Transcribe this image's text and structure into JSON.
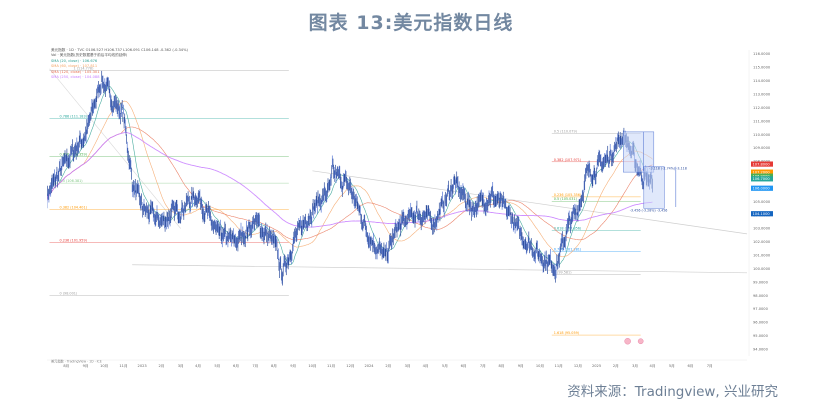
{
  "title": "图表 13:美元指数日线",
  "source": "资料来源：Tradingview, 兴业研究",
  "chart_data": {
    "type": "line",
    "title": "图表 13:美元指数日线",
    "series": [
      {
        "x": [
          "2022-07-01",
          "2022-08-01",
          "2022-09-01",
          "2022-09-27",
          "2022-10-15",
          "2022-11-01",
          "2022-11-15",
          "2022-12-01",
          "2023-01-01",
          "2023-02-01",
          "2023-03-01",
          "2023-04-01",
          "2023-05-01",
          "2023-06-01",
          "2023-07-01",
          "2023-07-14",
          "2023-08-01",
          "2023-09-01",
          "2023-10-01",
          "2023-10-03",
          "2023-11-01",
          "2023-12-01",
          "2023-12-27",
          "2024-01-15",
          "2024-02-15",
          "2024-03-15",
          "2024-04-16",
          "2024-05-15",
          "2024-06-15",
          "2024-07-15",
          "2024-08-01",
          "2024-09-01",
          "2024-09-27",
          "2024-10-15",
          "2024-11-01",
          "2024-11-15",
          "2024-12-15",
          "2025-01-13",
          "2025-02-01",
          "2025-02-15",
          "2025-03-01"
        ],
        "values": [
          105.5,
          108.0,
          110.0,
          114.1,
          112.5,
          111.5,
          106.5,
          104.5,
          103.5,
          104.5,
          105.5,
          102.5,
          102.0,
          103.5,
          102.0,
          99.6,
          102.0,
          104.5,
          106.0,
          107.2,
          106.0,
          102.5,
          100.8,
          103.0,
          104.2,
          103.5,
          106.4,
          104.5,
          105.5,
          104.0,
          102.5,
          101.0,
          100.2,
          103.0,
          104.5,
          107.0,
          108.0,
          110.0,
          108.0,
          106.8,
          106.5
        ]
      }
    ],
    "yaxis_ticks": [
      "116.0000",
      "115.0000",
      "114.0000",
      "113.0000",
      "112.0000",
      "111.0000",
      "110.0000",
      "109.0000",
      "108.0000",
      "107.0000",
      "106.0000",
      "105.0000",
      "104.0000",
      "103.0000",
      "102.0000",
      "101.0000",
      "100.0000",
      "99.0000",
      "98.0000",
      "97.0000",
      "96.0000",
      "95.0000",
      "94.0000"
    ],
    "xaxis_ticks": [
      "8月",
      "9月",
      "10月",
      "11月",
      "2023",
      "2月",
      "3月",
      "4月",
      "5月",
      "6月",
      "7月",
      "8月",
      "9月",
      "10月",
      "11月",
      "12月",
      "2024",
      "2月",
      "3月",
      "4月",
      "5月",
      "6月",
      "7月",
      "8月",
      "9月",
      "10月",
      "11月",
      "12月",
      "2025",
      "2月",
      "3月",
      "4月",
      "5月",
      "6月",
      "7月"
    ],
    "x_range": [
      "2022-07-01",
      "2025-07-31"
    ],
    "ylim": [
      93.5,
      116.3
    ],
    "grid": false,
    "moving_averages": [
      {
        "name": "SMA (20, close)",
        "color": "#2a9d8f"
      },
      {
        "name": "SMA (60, close)",
        "color": "#f4a261"
      },
      {
        "name": "SMA (120, close)",
        "color": "#e76f51"
      },
      {
        "name": "SMA (250, close)",
        "color": "#c77dff"
      }
    ],
    "fib_levels": [
      {
        "label": "1 (114.778)",
        "value": 114.778,
        "color": "#9e9e9e"
      },
      {
        "label": "0.786 (111.183)",
        "value": 111.183,
        "color": "#26a69a"
      },
      {
        "label": "0.618 (108.359)",
        "value": 108.359,
        "color": "#4caf50"
      },
      {
        "label": "0.5 (106.381)",
        "value": 106.381,
        "color": "#81c784"
      },
      {
        "label": "0.382 (104.401)",
        "value": 104.401,
        "color": "#ff9800"
      },
      {
        "label": "0.236 (101.959)",
        "value": 101.959,
        "color": "#e53935"
      },
      {
        "label": "0 (98.001)",
        "value": 98.001,
        "color": "#9e9e9e"
      }
    ],
    "fib_levels_2": [
      {
        "label": "0.5 (110.079)",
        "value": 110.079,
        "color": "#9e9e9e"
      },
      {
        "label": "0.382 (107.971)",
        "value": 107.971,
        "color": "#e53935"
      },
      {
        "label": "0.236 (105.356)",
        "value": 105.356,
        "color": "#ff9800"
      },
      {
        "label": "0.5 (105.031)",
        "value": 105.031,
        "color": "#4caf50"
      },
      {
        "label": "0.618 (102.856)",
        "value": 102.856,
        "color": "#26a69a"
      },
      {
        "label": "0.786 (101.281)",
        "value": 101.281,
        "color": "#2196f3"
      },
      {
        "label": "1 (99.581)",
        "value": 99.581,
        "color": "#9e9e9e"
      },
      {
        "label": "1.618 (95.059)",
        "value": 95.059,
        "color": "#ff9800"
      }
    ],
    "price_labels": [
      {
        "text": "107.8000",
        "value": 107.8,
        "color": "#e53935"
      },
      {
        "text": "107.2000",
        "value": 107.2,
        "color": "#ff9800"
      },
      {
        "text": "106.9000",
        "value": 106.9,
        "color": "#4caf50"
      },
      {
        "text": "106.7000",
        "value": 106.7,
        "color": "#26a69a"
      },
      {
        "text": "106.0000",
        "value": 106.0,
        "color": "#2196f3"
      },
      {
        "text": "104.1000",
        "value": 104.1,
        "color": "#1565c0"
      }
    ],
    "range_annotations": [
      {
        "text": "-3.118 (-2.74%) -3,118",
        "value": 107.4
      },
      {
        "text": "-3.456 (-3.28%) -3,456",
        "value": 104.5
      }
    ],
    "legend_lines": [
      "美元指数 · 1D · TVC O106.527 H106.737 L106.091 C106.148 -0.362 (-0.34%)",
      "Vol · 美元指数(历史数据基于前后平均线的延伸)",
      "SMA (20, close) · 106.676",
      "SMA (60, close) · 107.811",
      "SMA (120, close) · 105.301",
      "SMA (250, close) · 104.088"
    ],
    "footer_text": "美元指数 · TradingView · 1D · ICE"
  }
}
